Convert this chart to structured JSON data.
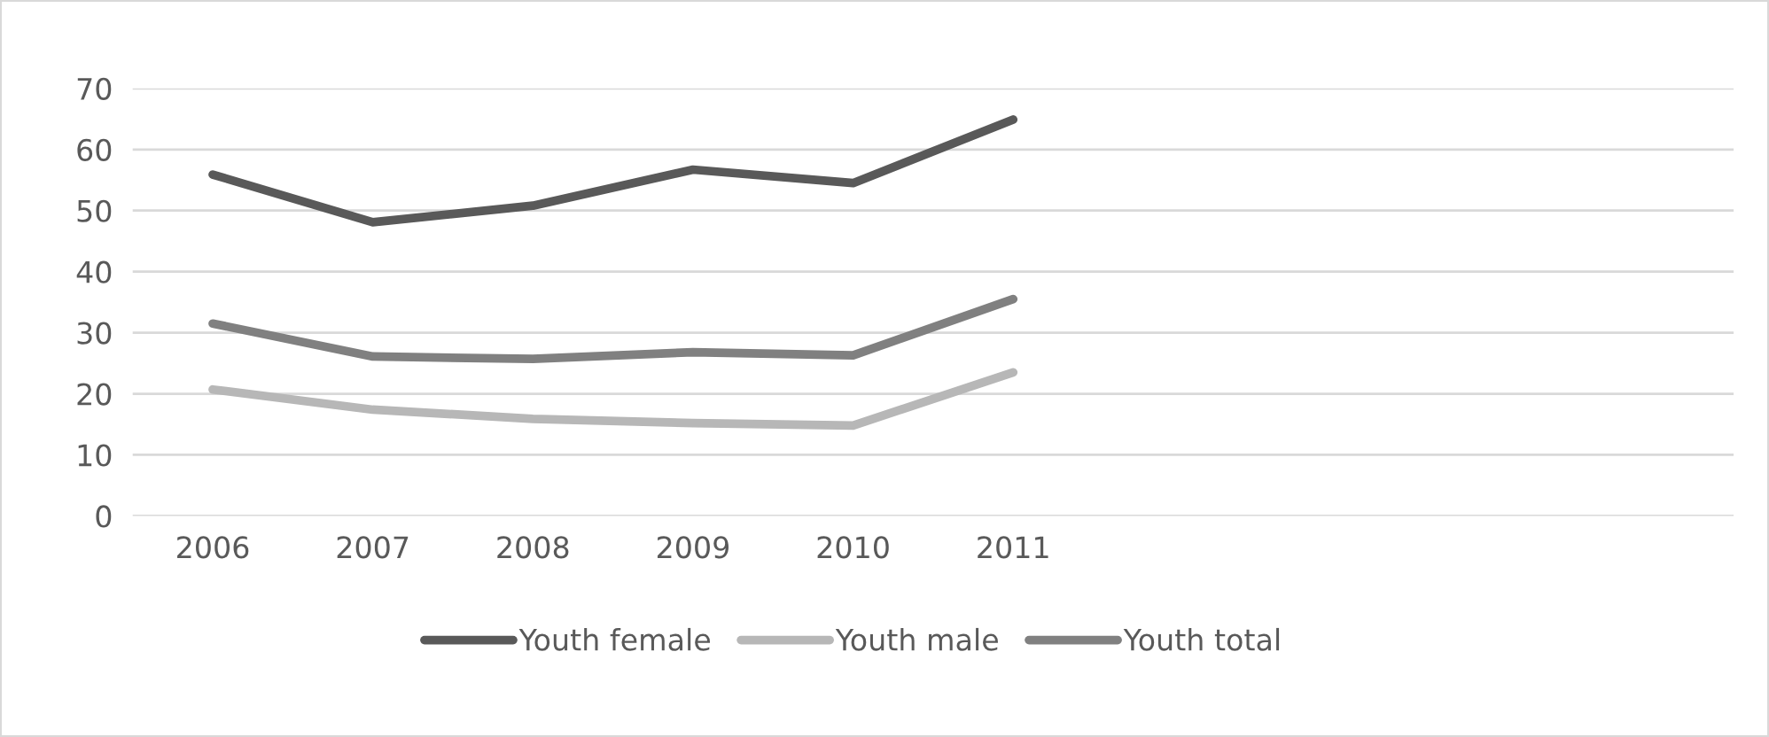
{
  "chart_data": {
    "type": "line",
    "categories": [
      "2006",
      "2007",
      "2008",
      "2009",
      "2010",
      "2011",
      null,
      null,
      null,
      null
    ],
    "series": [
      {
        "name": "Youth female",
        "color": "#595959",
        "values": [
          55.9,
          48.1,
          50.8,
          56.7,
          54.5,
          64.9,
          null,
          null,
          null,
          null
        ]
      },
      {
        "name": "Youth male",
        "color": "#b7b7b7",
        "values": [
          20.7,
          17.4,
          15.9,
          15.2,
          14.8,
          23.5,
          null,
          null,
          null,
          null
        ]
      },
      {
        "name": "Youth total",
        "color": "#808080",
        "values": [
          31.5,
          26.1,
          25.7,
          26.8,
          26.3,
          35.5,
          null,
          null,
          null,
          null
        ]
      }
    ],
    "ylim": [
      0,
      70
    ],
    "yticks": [
      0,
      10,
      20,
      30,
      40,
      50,
      60,
      70
    ],
    "grid": "y",
    "legend": "bottom",
    "marker": "none",
    "line_style": "solid"
  }
}
